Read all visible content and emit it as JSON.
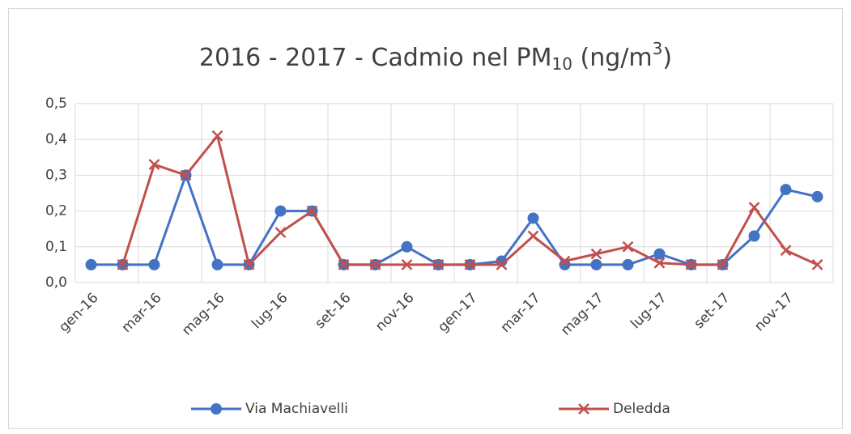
{
  "chart_data": {
    "type": "line",
    "title": [
      "2016 - 2017 - Cadmio nel PM",
      "10",
      " (ng/m",
      "3",
      ")"
    ],
    "categories": [
      "gen-16",
      null,
      "mar-16",
      null,
      "mag-16",
      null,
      "lug-16",
      null,
      "set-16",
      null,
      "nov-16",
      null,
      "gen-17",
      null,
      "mar-17",
      null,
      "mag-17",
      null,
      "lug-17",
      null,
      "set-17",
      null,
      "nov-17",
      null
    ],
    "series": [
      {
        "name": "Via Machiavelli",
        "color": "#4472c4",
        "marker": "circle",
        "values": [
          0.05,
          0.05,
          0.05,
          0.3,
          0.05,
          0.05,
          0.2,
          0.2,
          0.05,
          0.05,
          0.1,
          0.05,
          0.05,
          0.06,
          0.18,
          0.05,
          0.05,
          0.05,
          0.08,
          0.05,
          0.05,
          0.13,
          0.26,
          0.24
        ]
      },
      {
        "name": "Deledda",
        "color": "#c0504d",
        "marker": "x",
        "values": [
          null,
          0.05,
          0.33,
          0.3,
          0.41,
          0.05,
          0.14,
          0.2,
          0.05,
          0.05,
          0.05,
          0.05,
          0.05,
          0.05,
          0.13,
          0.06,
          0.08,
          0.1,
          0.055,
          0.05,
          0.05,
          0.21,
          0.09,
          0.05
        ]
      }
    ],
    "ylim": [
      0,
      0.5
    ],
    "yticks": [
      {
        "value": 0,
        "label": "0,0"
      },
      {
        "value": 0.1,
        "label": "0,1"
      },
      {
        "value": 0.2,
        "label": "0,2"
      },
      {
        "value": 0.3,
        "label": "0,3"
      },
      {
        "value": 0.4,
        "label": "0,4"
      },
      {
        "value": 0.5,
        "label": "0,5"
      }
    ],
    "grid": true,
    "legend": "bottom"
  }
}
